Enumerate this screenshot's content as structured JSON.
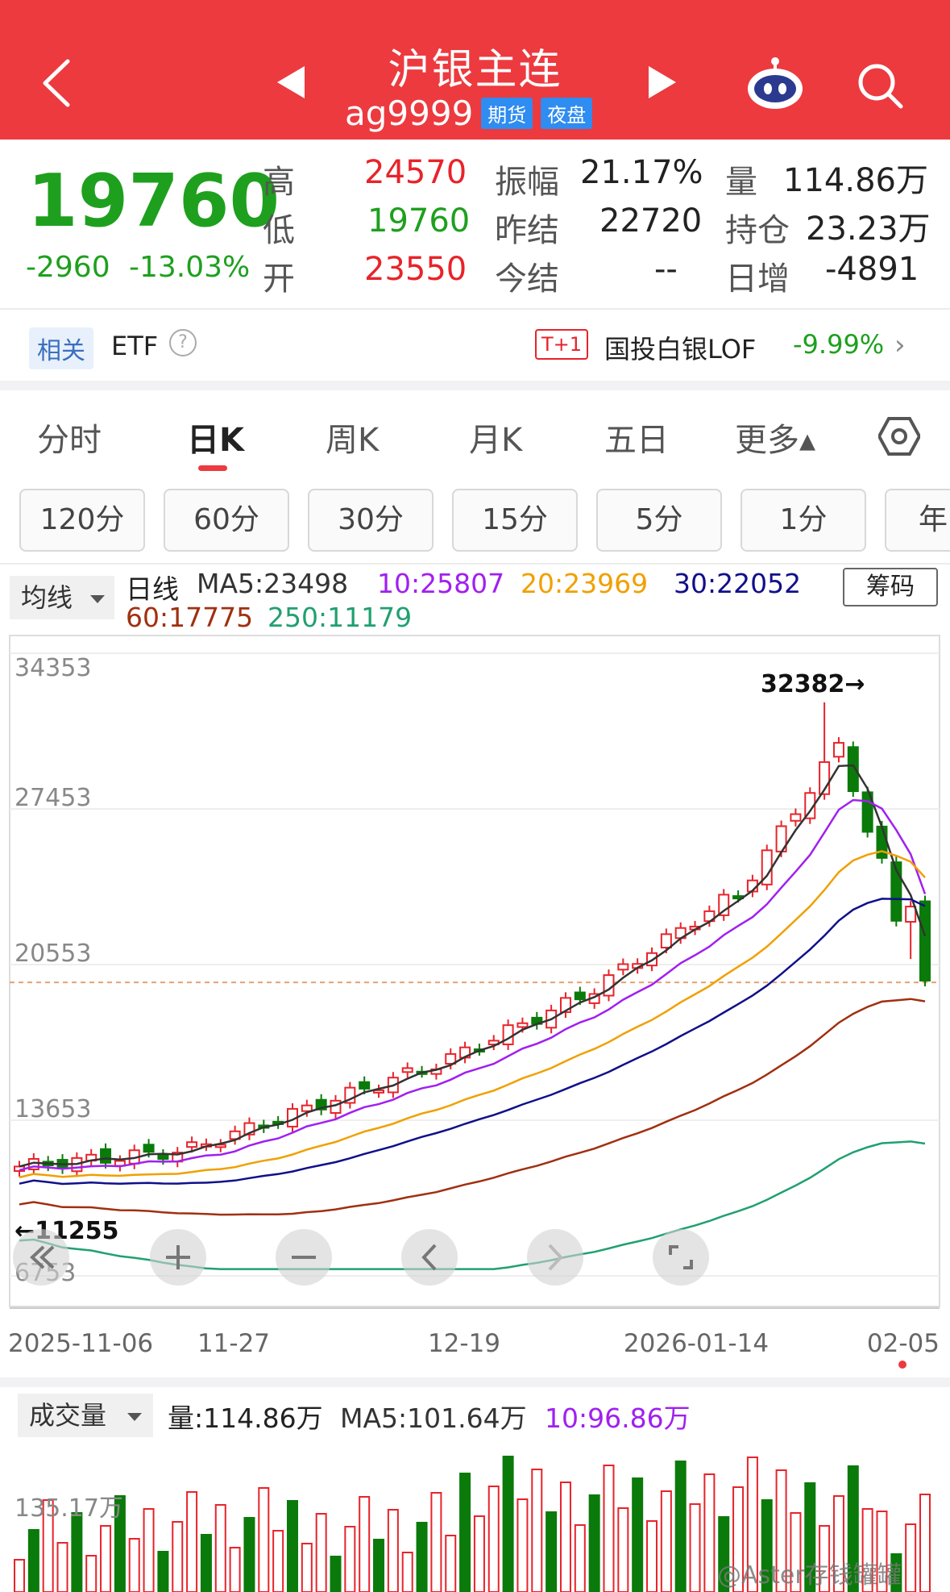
{
  "header": {
    "title": "沪银主连",
    "code": "ag9999",
    "tag_futures": "期货",
    "tag_night": "夜盘"
  },
  "quote": {
    "last": "19760",
    "change": "-2960",
    "change_pct": "-13.03%",
    "high_label": "高",
    "high": "24570",
    "low_label": "低",
    "low": "19760",
    "open_label": "开",
    "open": "23550",
    "amp_label": "振幅",
    "amp": "21.17%",
    "prevset_label": "昨结",
    "prevset": "22720",
    "set_label": "今结",
    "set": "--",
    "vol_label": "量",
    "vol": "114.86万",
    "oi_label": "持仓",
    "oi": "23.23万",
    "oichg_label": "日增",
    "oichg": "-4891",
    "colors": {
      "up": "#e8232a",
      "down": "#1ea01e"
    }
  },
  "etf": {
    "tag": "相关",
    "label": "ETF",
    "help": "?",
    "t1": "T+1",
    "name": "国投白银LOF",
    "pct": "-9.99%",
    "arrow": "›"
  },
  "tabs": [
    "分时",
    "日K",
    "周K",
    "月K",
    "五日",
    "更多▴"
  ],
  "active_tab": "日K",
  "periods": [
    "120分",
    "60分",
    "30分",
    "15分",
    "5分",
    "1分",
    "年"
  ],
  "ma": {
    "select": "均线",
    "type": "日线",
    "ma5": "MA5:23498",
    "ma10": "10:25807",
    "ma20": "20:23969",
    "ma30": "30:22052",
    "ma60": "60:17775",
    "ma250": "250:11179",
    "chip_button": "筹码",
    "colors": {
      "ma5": "#333333",
      "ma10": "#a020f0",
      "ma20": "#f0a000",
      "ma30": "#10108a",
      "ma60": "#a03010",
      "ma250": "#20a070"
    }
  },
  "chart_data": {
    "type": "candlestick",
    "y_ticks": [
      "34353",
      "27453",
      "20553",
      "13653",
      "6753"
    ],
    "x_ticks": [
      "2025-11-06",
      "11-27",
      "12-19",
      "2026-01-14",
      "02-05"
    ],
    "high_marker": "32382→",
    "low_marker": "←11255",
    "ylim": [
      6753,
      34353
    ],
    "last_price": 19760
  },
  "volume": {
    "select": "成交量",
    "vol": "量:114.86万",
    "ma5": "MA5:101.64万",
    "ma10": "10:96.86万",
    "tick": "135.17万"
  },
  "watermark": "@Aster存钱罐罐"
}
